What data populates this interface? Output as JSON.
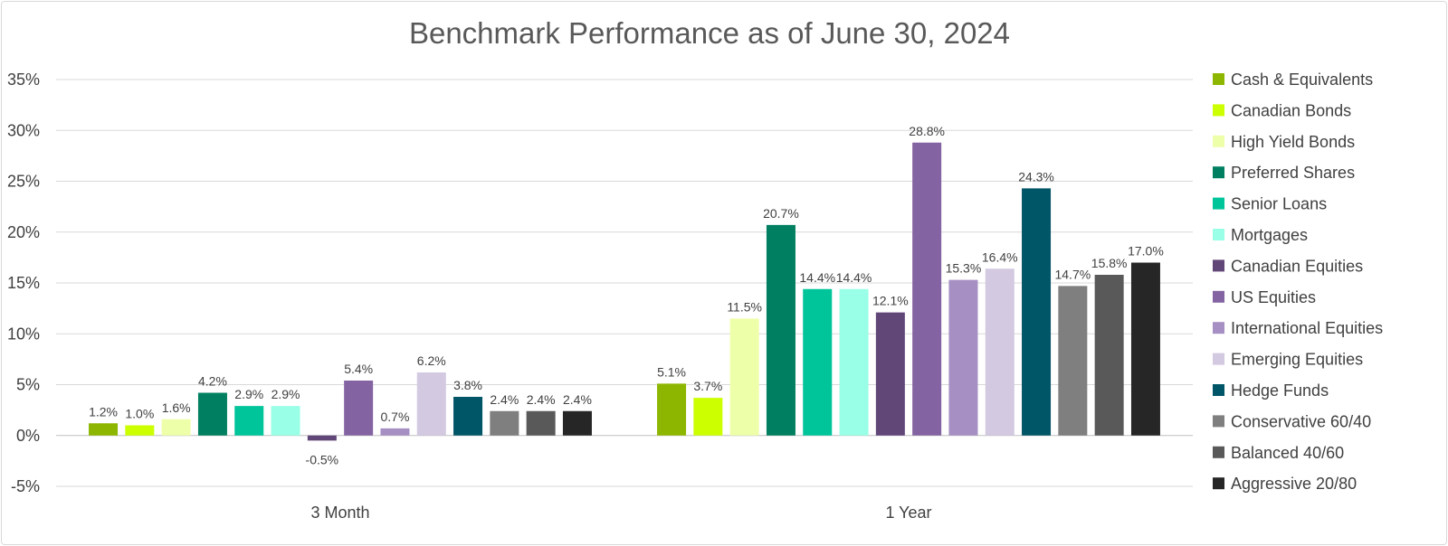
{
  "chart_data": {
    "type": "bar",
    "title": "Benchmark Performance as of June 30, 2024",
    "categories": [
      "3 Month",
      "1 Year"
    ],
    "ylim": [
      -5,
      35
    ],
    "yticks": [
      -5,
      0,
      5,
      10,
      15,
      20,
      25,
      30,
      35
    ],
    "ytick_labels": [
      "-5%",
      "0%",
      "5%",
      "10%",
      "15%",
      "20%",
      "25%",
      "30%",
      "35%"
    ],
    "grid": true,
    "legend_position": "right",
    "series": [
      {
        "name": "Cash & Equivalents",
        "color": "#8db600",
        "values": [
          1.2,
          5.1
        ],
        "labels": [
          "1.2%",
          "5.1%"
        ]
      },
      {
        "name": "Canadian Bonds",
        "color": "#ccff00",
        "values": [
          1.0,
          3.7
        ],
        "labels": [
          "1.0%",
          "3.7%"
        ]
      },
      {
        "name": "High Yield Bonds",
        "color": "#eeffaa",
        "values": [
          1.6,
          11.5
        ],
        "labels": [
          "1.6%",
          "11.5%"
        ]
      },
      {
        "name": "Preferred Shares",
        "color": "#008060",
        "values": [
          4.2,
          20.7
        ],
        "labels": [
          "4.2%",
          "20.7%"
        ]
      },
      {
        "name": "Senior Loans",
        "color": "#00c49a",
        "values": [
          2.9,
          14.4
        ],
        "labels": [
          "2.9%",
          "14.4%"
        ]
      },
      {
        "name": "Mortgages",
        "color": "#99ffe6",
        "values": [
          2.9,
          14.4
        ],
        "labels": [
          "2.9%",
          "14.4%"
        ]
      },
      {
        "name": "Canadian Equities",
        "color": "#614678",
        "values": [
          -0.5,
          12.1
        ],
        "labels": [
          "-0.5%",
          "12.1%"
        ]
      },
      {
        "name": "US Equities",
        "color": "#8463a2",
        "values": [
          5.4,
          28.8
        ],
        "labels": [
          "5.4%",
          "28.8%"
        ]
      },
      {
        "name": "International Equities",
        "color": "#a68fc2",
        "values": [
          0.7,
          15.3
        ],
        "labels": [
          "0.7%",
          "15.3%"
        ]
      },
      {
        "name": "Emerging Equities",
        "color": "#d3c9e0",
        "values": [
          6.2,
          16.4
        ],
        "labels": [
          "6.2%",
          "16.4%"
        ]
      },
      {
        "name": "Hedge Funds",
        "color": "#005566",
        "values": [
          3.8,
          24.3
        ],
        "labels": [
          "3.8%",
          "24.3%"
        ]
      },
      {
        "name": "Conservative 60/40",
        "color": "#7f7f7f",
        "values": [
          2.4,
          14.7
        ],
        "labels": [
          "2.4%",
          "14.7%"
        ]
      },
      {
        "name": "Balanced 40/60",
        "color": "#595959",
        "values": [
          2.4,
          15.8
        ],
        "labels": [
          "2.4%",
          "15.8%"
        ]
      },
      {
        "name": "Aggressive 20/80",
        "color": "#262626",
        "values": [
          2.4,
          17.0
        ],
        "labels": [
          "2.4%",
          "17.0%"
        ]
      }
    ]
  }
}
